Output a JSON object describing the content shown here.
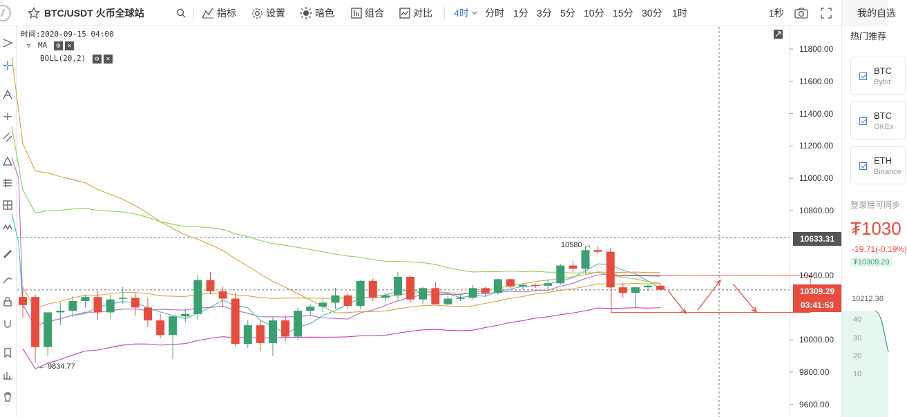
{
  "toolbar": {
    "star_icon": "star-icon",
    "pair": "BTC/USDT",
    "exchange": "火币全球站",
    "indicators": "指标",
    "settings": "设置",
    "dark": "暗色",
    "combo": "组合",
    "compare": "对比",
    "timeframes": {
      "tf4h": "4时",
      "tf_time": "分时",
      "tf1m": "1分",
      "tf3m": "3分",
      "tf5m": "5分",
      "tf10m": "10分",
      "tf15m": "15分",
      "tf30m": "30分",
      "tf1h": "1时"
    },
    "refresh": "1秒"
  },
  "legend": {
    "time": "时间:2020-09-15 04:00",
    "ma": "MA",
    "boll": "BOLL(20,2)"
  },
  "chart_data": {
    "type": "candlestick",
    "y_ticks": [
      11800,
      11600,
      11400,
      11200,
      11000,
      10800,
      10400,
      10000,
      9800,
      9600
    ],
    "y_tick_labels": [
      "11800.00",
      "11600.00",
      "11400.00",
      "11200.00",
      "11000.00",
      "10800.00",
      "10400.00",
      "10000.00",
      "9800.00",
      "9600.00"
    ],
    "price_high_marker": "10633.31",
    "price_last_marker": "10309.29",
    "countdown": "03:41:53",
    "annot_high": "10580",
    "annot_low": "9834.77",
    "candles": [
      [
        10265,
        10310,
        10140,
        10215
      ],
      [
        10265,
        10280,
        9860,
        9955
      ],
      [
        9955,
        10170,
        9900,
        10170
      ],
      [
        10170,
        10230,
        10090,
        10180
      ],
      [
        10180,
        10270,
        10140,
        10240
      ],
      [
        10240,
        10280,
        10200,
        10265
      ],
      [
        10265,
        10300,
        10120,
        10170
      ],
      [
        10170,
        10280,
        10130,
        10250
      ],
      [
        10255,
        10330,
        10220,
        10260
      ],
      [
        10260,
        10290,
        10150,
        10200
      ],
      [
        10200,
        10260,
        10080,
        10120
      ],
      [
        10120,
        10160,
        10010,
        10030
      ],
      [
        10030,
        10150,
        9880,
        10145
      ],
      [
        10145,
        10190,
        10110,
        10160
      ],
      [
        10160,
        10400,
        10120,
        10370
      ],
      [
        10370,
        10420,
        10280,
        10300
      ],
      [
        10300,
        10330,
        10200,
        10255
      ],
      [
        10255,
        10290,
        9960,
        9975
      ],
      [
        9975,
        10120,
        9950,
        10090
      ],
      [
        10090,
        10120,
        9930,
        9980
      ],
      [
        9980,
        10140,
        9900,
        10120
      ],
      [
        10120,
        10150,
        9990,
        10020
      ],
      [
        10020,
        10200,
        10000,
        10180
      ],
      [
        10180,
        10220,
        10150,
        10205
      ],
      [
        10205,
        10250,
        10170,
        10230
      ],
      [
        10230,
        10320,
        10190,
        10275
      ],
      [
        10275,
        10290,
        10190,
        10210
      ],
      [
        10210,
        10370,
        10190,
        10365
      ],
      [
        10365,
        10380,
        10240,
        10260
      ],
      [
        10260,
        10290,
        10240,
        10275
      ],
      [
        10275,
        10420,
        10250,
        10390
      ],
      [
        10390,
        10400,
        10230,
        10250
      ],
      [
        10250,
        10330,
        10220,
        10320
      ],
      [
        10320,
        10360,
        10220,
        10220
      ],
      [
        10220,
        10270,
        10210,
        10255
      ],
      [
        10255,
        10280,
        10240,
        10260
      ],
      [
        10260,
        10340,
        10250,
        10320
      ],
      [
        10320,
        10330,
        10270,
        10290
      ],
      [
        10290,
        10380,
        10280,
        10375
      ],
      [
        10375,
        10380,
        10320,
        10330
      ],
      [
        10330,
        10350,
        10310,
        10340
      ],
      [
        10340,
        10350,
        10320,
        10335
      ],
      [
        10335,
        10375,
        10300,
        10350
      ],
      [
        10350,
        10470,
        10340,
        10460
      ],
      [
        10460,
        10490,
        10420,
        10440
      ],
      [
        10440,
        10580,
        10410,
        10555
      ],
      [
        10555,
        10580,
        10530,
        10545
      ],
      [
        10545,
        10565,
        10320,
        10325
      ],
      [
        10325,
        10350,
        10260,
        10290
      ],
      [
        10290,
        10330,
        10200,
        10325
      ],
      [
        10325,
        10340,
        10300,
        10335
      ],
      [
        10335,
        10345,
        10305,
        10310
      ]
    ]
  },
  "right_panel": {
    "tab": "我的自选",
    "hot": "热门推荐",
    "cards": [
      {
        "symbol": "BTC",
        "exchange": "Bybit"
      },
      {
        "symbol": "BTC",
        "exchange": "OKEx"
      },
      {
        "symbol": "ETH",
        "exchange": "Binance"
      }
    ],
    "login_hint": "登录后可同步",
    "price": "₮1030",
    "change": "-19.71(-0.19%)",
    "converted": "₮10309.29",
    "low": "10212.36",
    "ticks": [
      "40",
      "30",
      "20",
      "10"
    ],
    "colors": {
      "down": "#e74c3c",
      "up": "#3aa070"
    }
  }
}
